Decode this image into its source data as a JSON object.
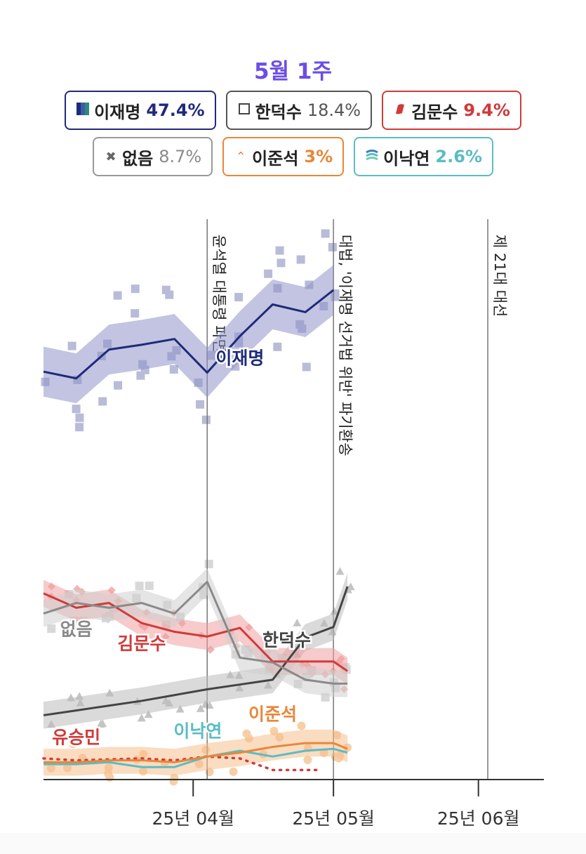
{
  "header": {
    "title": "5월 1주"
  },
  "legend": [
    {
      "name": "이재명",
      "value": "47.4%",
      "color": "#1f2a7a",
      "icon": "party-flag-icon"
    },
    {
      "name": "한덕수",
      "value": "18.4%",
      "color": "#555555",
      "icon": "square-outline-icon"
    },
    {
      "name": "김문수",
      "value": "9.4%",
      "color": "#d13a3a",
      "icon": "red-party-icon"
    },
    {
      "name": "없음",
      "value": "8.7%",
      "color": "#8a8a8a",
      "icon": "cross-icon"
    },
    {
      "name": "이준석",
      "value": "3%",
      "color": "#e8873a",
      "icon": "caret-up-icon"
    },
    {
      "name": "이낙연",
      "value": "2.6%",
      "color": "#5bbcc4",
      "icon": "wave-icon"
    }
  ],
  "chart_data": {
    "type": "line",
    "y_unit": "%",
    "ylim": [
      0,
      60
    ],
    "xlim": [
      "2025-02-28",
      "2025-06-15"
    ],
    "x_ticks": [
      {
        "date": "2025-04-01",
        "label": "25년 04월"
      },
      {
        "date": "2025-05-01",
        "label": "25년 05월"
      },
      {
        "date": "2025-06-01",
        "label": "25년 06월"
      }
    ],
    "events": [
      {
        "date": "2025-04-04",
        "label": "윤석열 대통령 파면"
      },
      {
        "date": "2025-05-01",
        "label": "대법, '이재명 선거법 위반' 파기환송"
      },
      {
        "date": "2025-06-03",
        "label": "제 21대 대선"
      }
    ],
    "series": [
      {
        "name": "이재명",
        "color": "#1f2a7a",
        "band": "#8f93c9",
        "x": [
          "2025-02-28",
          "2025-03-07",
          "2025-03-14",
          "2025-03-21",
          "2025-03-28",
          "2025-04-04",
          "2025-04-11",
          "2025-04-18",
          "2025-04-25",
          "2025-05-01"
        ],
        "y": [
          42.5,
          41.8,
          44.8,
          45.3,
          45.9,
          42.4,
          46.2,
          49.5,
          48.7,
          51.0
        ]
      },
      {
        "name": "한덕수",
        "color": "#444444",
        "band": "#bbbbbb",
        "x": [
          "2025-02-28",
          "2025-03-07",
          "2025-03-14",
          "2025-03-21",
          "2025-03-28",
          "2025-04-04",
          "2025-04-11",
          "2025-04-18",
          "2025-04-25",
          "2025-05-01",
          "2025-05-04"
        ],
        "y": [
          6.7,
          7.2,
          7.7,
          8.2,
          8.8,
          9.4,
          9.9,
          10.4,
          14.8,
          15.9,
          20.1
        ]
      },
      {
        "name": "김문수",
        "color": "#d13a3a",
        "band": "#f0a0a0",
        "x": [
          "2025-02-28",
          "2025-03-07",
          "2025-03-14",
          "2025-03-21",
          "2025-03-28",
          "2025-04-04",
          "2025-04-11",
          "2025-04-18",
          "2025-04-25",
          "2025-05-01",
          "2025-05-04"
        ],
        "y": [
          19.4,
          17.9,
          18.4,
          16.3,
          15.4,
          14.9,
          15.8,
          12.3,
          12.3,
          12.3,
          11.3
        ]
      },
      {
        "name": "없음",
        "color": "#8a8a8a",
        "band": "#cfcfcf",
        "x": [
          "2025-02-28",
          "2025-03-07",
          "2025-03-14",
          "2025-03-21",
          "2025-03-28",
          "2025-04-04",
          "2025-04-11",
          "2025-04-18",
          "2025-04-25",
          "2025-05-01",
          "2025-05-04"
        ],
        "y": [
          17.3,
          18.4,
          17.9,
          18.4,
          17.3,
          20.6,
          12.7,
          12.2,
          10.4,
          10.0,
          10.0
        ]
      },
      {
        "name": "유승민",
        "color": "#d13a3a",
        "dashed": true,
        "x": [
          "2025-02-28",
          "2025-03-07",
          "2025-03-14",
          "2025-03-21",
          "2025-03-28",
          "2025-04-04",
          "2025-04-11",
          "2025-04-18",
          "2025-04-25",
          "2025-04-28"
        ],
        "y": [
          2.2,
          2.0,
          2.1,
          2.2,
          2.0,
          2.4,
          2.2,
          1.0,
          1.0,
          1.0
        ]
      },
      {
        "name": "이낙연",
        "color": "#5bbcc4",
        "x": [
          "2025-02-28",
          "2025-03-07",
          "2025-03-14",
          "2025-03-21",
          "2025-03-28",
          "2025-04-04",
          "2025-04-11",
          "2025-04-18",
          "2025-04-25",
          "2025-05-01",
          "2025-05-04"
        ],
        "y": [
          1.6,
          1.6,
          1.8,
          1.3,
          1.3,
          2.4,
          3.0,
          2.4,
          3.0,
          3.2,
          2.8
        ]
      },
      {
        "name": "이준석",
        "color": "#e8873a",
        "band": "#f6c08e",
        "x": [
          "2025-02-28",
          "2025-03-07",
          "2025-03-14",
          "2025-03-21",
          "2025-03-28",
          "2025-04-04",
          "2025-04-11",
          "2025-04-18",
          "2025-04-25",
          "2025-05-01",
          "2025-05-04"
        ],
        "y": [
          1.8,
          1.8,
          2.0,
          2.0,
          1.8,
          2.4,
          2.8,
          3.4,
          3.8,
          3.8,
          3.2
        ]
      }
    ],
    "series_labels": [
      {
        "series": "이재명",
        "text": "이재명"
      },
      {
        "series": "한덕수",
        "text": "한덕수"
      },
      {
        "series": "없음",
        "text": "없음"
      },
      {
        "series": "김문수",
        "text": "김문수"
      },
      {
        "series": "유승민",
        "text": "유승민"
      },
      {
        "series": "이낙연",
        "text": "이낙연"
      },
      {
        "series": "이준석",
        "text": "이준석"
      }
    ]
  }
}
